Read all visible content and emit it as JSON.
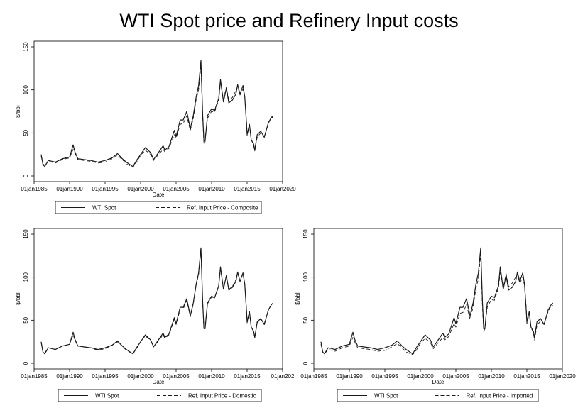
{
  "title": "WTI Spot price and Refinery Input costs",
  "chart_data": [
    {
      "type": "line",
      "panel": "top-left",
      "title": "",
      "xlabel": "Date",
      "ylabel": "$/bbl",
      "xlim": [
        "1985-01-01",
        "2020-01-01"
      ],
      "ylim": [
        0,
        150
      ],
      "y_ticks": [
        0,
        50,
        100,
        150
      ],
      "x_ticks": [
        "01jan1985",
        "01jan1990",
        "01jan1995",
        "01jan2000",
        "01jan2005",
        "01jan2010",
        "01jan2015",
        "01jan2020"
      ],
      "grid": false,
      "legend_position": "bottom",
      "x": [
        "1986-01",
        "1986-04",
        "1986-07",
        "1987-01",
        "1988-01",
        "1989-01",
        "1990-01",
        "1990-07",
        "1990-10",
        "1991-03",
        "1992-01",
        "1993-01",
        "1994-01",
        "1995-01",
        "1996-01",
        "1996-10",
        "1997-06",
        "1998-01",
        "1998-12",
        "1999-06",
        "2000-01",
        "2000-09",
        "2001-06",
        "2001-11",
        "2002-06",
        "2003-03",
        "2003-06",
        "2004-01",
        "2004-10",
        "2005-01",
        "2005-08",
        "2006-01",
        "2006-07",
        "2007-01",
        "2007-06",
        "2007-11",
        "2008-03",
        "2008-07",
        "2008-10",
        "2008-12",
        "2009-02",
        "2009-06",
        "2010-01",
        "2010-06",
        "2011-01",
        "2011-04",
        "2011-09",
        "2012-02",
        "2012-06",
        "2012-12",
        "2013-06",
        "2013-09",
        "2014-01",
        "2014-06",
        "2014-09",
        "2014-12",
        "2015-01",
        "2015-05",
        "2015-08",
        "2015-12",
        "2016-02",
        "2016-06",
        "2016-12",
        "2017-06",
        "2018-01",
        "2018-06",
        "2018-09"
      ],
      "series": [
        {
          "name": "WTI Spot",
          "style": "solid",
          "values": [
            25,
            13,
            11,
            18,
            16,
            20,
            22,
            36,
            28,
            20,
            19,
            18,
            16,
            18,
            21,
            26,
            20,
            16,
            11,
            18,
            25,
            33,
            27,
            19,
            26,
            35,
            30,
            34,
            53,
            46,
            65,
            65,
            75,
            55,
            70,
            92,
            105,
            134,
            70,
            41,
            40,
            70,
            78,
            76,
            90,
            112,
            86,
            102,
            85,
            88,
            95,
            106,
            95,
            105,
            92,
            60,
            48,
            60,
            42,
            37,
            30,
            48,
            52,
            45,
            62,
            68,
            70
          ]
        },
        {
          "name": "Ref. Input Price - Composite",
          "style": "dashed",
          "values": [
            23,
            14,
            12,
            17,
            15,
            19,
            21,
            31,
            26,
            19,
            18,
            17,
            15,
            16,
            20,
            24,
            19,
            14,
            10,
            16,
            24,
            30,
            25,
            18,
            24,
            31,
            28,
            32,
            48,
            44,
            60,
            61,
            70,
            53,
            67,
            89,
            100,
            129,
            66,
            38,
            42,
            67,
            75,
            74,
            88,
            108,
            89,
            103,
            88,
            91,
            99,
            104,
            94,
            101,
            91,
            62,
            47,
            59,
            43,
            35,
            29,
            45,
            50,
            46,
            61,
            68,
            68
          ]
        }
      ]
    },
    {
      "type": "line",
      "panel": "bottom-left",
      "title": "",
      "xlabel": "Date",
      "ylabel": "$/bbl",
      "xlim": [
        "1985-01-01",
        "2020-01-01"
      ],
      "ylim": [
        0,
        150
      ],
      "y_ticks": [
        0,
        50,
        100,
        150
      ],
      "x_ticks": [
        "01jan1985",
        "01jan1990",
        "01jan1995",
        "01jan2000",
        "01jan2005",
        "01jan2010",
        "01jan2015",
        "01jan202"
      ],
      "grid": false,
      "legend_position": "bottom",
      "x": [
        "1986-01",
        "1986-04",
        "1986-07",
        "1987-01",
        "1988-01",
        "1989-01",
        "1990-01",
        "1990-07",
        "1990-10",
        "1991-03",
        "1992-01",
        "1993-01",
        "1994-01",
        "1995-01",
        "1996-01",
        "1996-10",
        "1997-06",
        "1998-01",
        "1998-12",
        "1999-06",
        "2000-01",
        "2000-09",
        "2001-06",
        "2001-11",
        "2002-06",
        "2003-03",
        "2003-06",
        "2004-01",
        "2004-10",
        "2005-01",
        "2005-08",
        "2006-01",
        "2006-07",
        "2007-01",
        "2007-06",
        "2007-11",
        "2008-03",
        "2008-07",
        "2008-10",
        "2008-12",
        "2009-02",
        "2009-06",
        "2010-01",
        "2010-06",
        "2011-01",
        "2011-04",
        "2011-09",
        "2012-02",
        "2012-06",
        "2012-12",
        "2013-06",
        "2013-09",
        "2014-01",
        "2014-06",
        "2014-09",
        "2014-12",
        "2015-01",
        "2015-05",
        "2015-08",
        "2015-12",
        "2016-02",
        "2016-06",
        "2016-12",
        "2017-06",
        "2018-01",
        "2018-06",
        "2018-09"
      ],
      "series": [
        {
          "name": "WTI Spot",
          "style": "solid",
          "values": [
            25,
            13,
            11,
            18,
            16,
            20,
            22,
            36,
            28,
            20,
            19,
            18,
            16,
            18,
            21,
            26,
            20,
            16,
            11,
            18,
            25,
            33,
            27,
            19,
            26,
            35,
            30,
            34,
            53,
            46,
            65,
            65,
            75,
            55,
            70,
            92,
            105,
            134,
            70,
            41,
            40,
            70,
            78,
            76,
            90,
            112,
            86,
            102,
            85,
            88,
            95,
            106,
            95,
            105,
            92,
            60,
            48,
            60,
            42,
            37,
            30,
            48,
            52,
            45,
            62,
            68,
            70
          ]
        },
        {
          "name": "Ref. Input Price - Domestic",
          "style": "dashed",
          "values": [
            24,
            13,
            12,
            18,
            16,
            20,
            22,
            33,
            27,
            20,
            19,
            18,
            15,
            17,
            21,
            25,
            20,
            15,
            11,
            17,
            25,
            32,
            26,
            19,
            25,
            33,
            29,
            33,
            51,
            45,
            63,
            63,
            73,
            54,
            69,
            91,
            103,
            132,
            68,
            40,
            41,
            69,
            77,
            76,
            89,
            110,
            87,
            101,
            86,
            89,
            97,
            105,
            95,
            104,
            92,
            61,
            47,
            59,
            43,
            36,
            30,
            47,
            51,
            46,
            62,
            68,
            69
          ]
        }
      ]
    },
    {
      "type": "line",
      "panel": "bottom-right",
      "title": "",
      "xlabel": "Date",
      "ylabel": "$/bbl",
      "xlim": [
        "1985-01-01",
        "2020-01-01"
      ],
      "ylim": [
        0,
        150
      ],
      "y_ticks": [
        0,
        50,
        100,
        150
      ],
      "x_ticks": [
        "01jan1985",
        "01jan1990",
        "01jan1995",
        "01jan2000",
        "01jan2005",
        "01jan2010",
        "01jan2015",
        "01jan2020"
      ],
      "grid": false,
      "legend_position": "bottom",
      "x": [
        "1986-01",
        "1986-04",
        "1986-07",
        "1987-01",
        "1988-01",
        "1989-01",
        "1990-01",
        "1990-07",
        "1990-10",
        "1991-03",
        "1992-01",
        "1993-01",
        "1994-01",
        "1995-01",
        "1996-01",
        "1996-10",
        "1997-06",
        "1998-01",
        "1998-12",
        "1999-06",
        "2000-01",
        "2000-09",
        "2001-06",
        "2001-11",
        "2002-06",
        "2003-03",
        "2003-06",
        "2004-01",
        "2004-10",
        "2005-01",
        "2005-08",
        "2006-01",
        "2006-07",
        "2007-01",
        "2007-06",
        "2007-11",
        "2008-03",
        "2008-07",
        "2008-10",
        "2008-12",
        "2009-02",
        "2009-06",
        "2010-01",
        "2010-06",
        "2011-01",
        "2011-04",
        "2011-09",
        "2012-02",
        "2012-06",
        "2012-12",
        "2013-06",
        "2013-09",
        "2014-01",
        "2014-06",
        "2014-09",
        "2014-12",
        "2015-01",
        "2015-05",
        "2015-08",
        "2015-12",
        "2016-02",
        "2016-06",
        "2016-12",
        "2017-06",
        "2018-01",
        "2018-06",
        "2018-09"
      ],
      "series": [
        {
          "name": "WTI Spot",
          "style": "solid",
          "values": [
            25,
            13,
            11,
            18,
            16,
            20,
            22,
            36,
            28,
            20,
            19,
            18,
            16,
            18,
            21,
            26,
            20,
            16,
            11,
            18,
            25,
            33,
            27,
            19,
            26,
            35,
            30,
            34,
            53,
            46,
            65,
            65,
            75,
            55,
            70,
            92,
            105,
            134,
            70,
            41,
            40,
            70,
            78,
            76,
            90,
            112,
            86,
            102,
            85,
            88,
            95,
            106,
            95,
            105,
            92,
            60,
            48,
            60,
            42,
            37,
            30,
            48,
            52,
            45,
            62,
            68,
            70
          ]
        },
        {
          "name": "Ref. Input Price - Imported",
          "style": "dashed",
          "values": [
            22,
            13,
            11,
            16,
            14,
            18,
            20,
            30,
            25,
            18,
            17,
            16,
            14,
            15,
            19,
            23,
            18,
            13,
            10,
            15,
            23,
            29,
            24,
            17,
            23,
            30,
            27,
            31,
            46,
            42,
            58,
            59,
            68,
            51,
            65,
            87,
            98,
            127,
            64,
            37,
            40,
            65,
            74,
            73,
            87,
            107,
            88,
            104,
            89,
            93,
            100,
            104,
            93,
            100,
            90,
            63,
            46,
            58,
            42,
            35,
            27,
            44,
            49,
            46,
            60,
            67,
            67
          ]
        }
      ]
    }
  ]
}
